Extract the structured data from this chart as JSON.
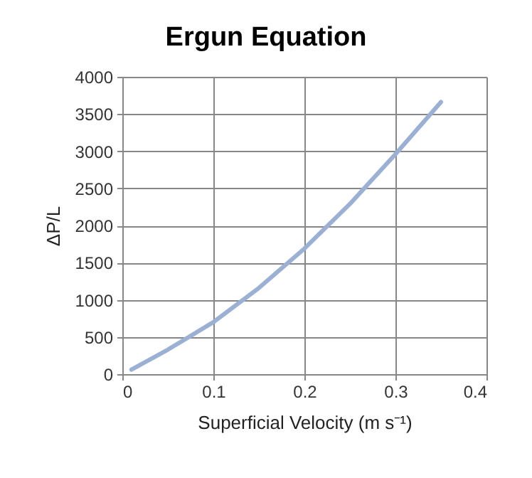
{
  "chart_data": {
    "type": "line",
    "title": "Ergun Equation",
    "xlabel": "Superficial Velocity (m s⁻¹)",
    "ylabel": "ΔP/L",
    "x": [
      0.01,
      0.05,
      0.1,
      0.15,
      0.2,
      0.25,
      0.3,
      0.35
    ],
    "series": [
      {
        "color": "#9bb0d3",
        "values": [
          60,
          330,
          700,
          1160,
          1690,
          2290,
          2960,
          3660
        ]
      }
    ],
    "xlim": [
      0,
      0.4
    ],
    "xticks": [
      0,
      0.1,
      0.2,
      0.3,
      0.4
    ],
    "ylim": [
      0,
      4000
    ],
    "yticks": [
      0,
      500,
      1000,
      1500,
      2000,
      2500,
      3000,
      3500,
      4000
    ],
    "grid": true,
    "marker": "none",
    "line_style": "solid"
  }
}
